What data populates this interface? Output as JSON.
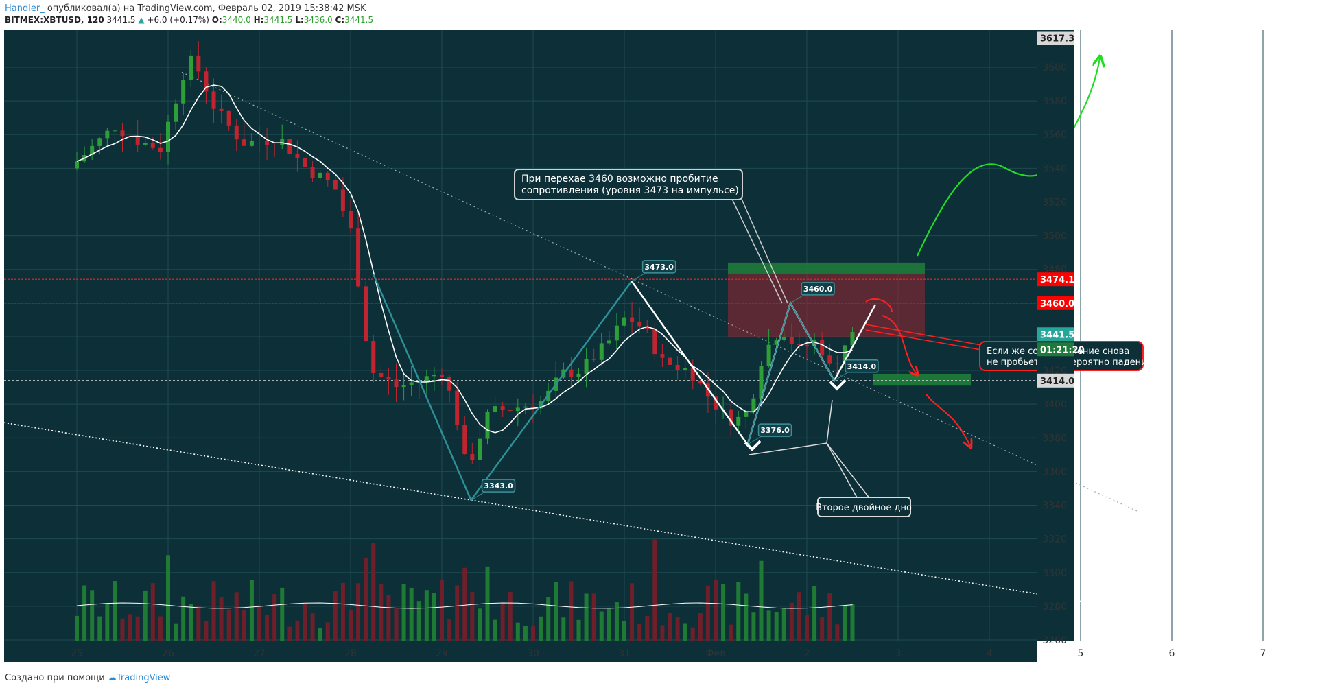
{
  "header": {
    "author": "Handler_",
    "published": "опубликовал(а) на TradingView.com, Февраль 02, 2019 15:38:42 MSK",
    "symbol": "BITMEX:XBTUSD, 120",
    "last": "3441.5",
    "arrow": "▲",
    "change": "+6.0 (+0.17%)",
    "o_label": "O:",
    "o": "3440.0",
    "h_label": "H:",
    "h": "3441.5",
    "l_label": "L:",
    "l": "3436.0",
    "c_label": "C:",
    "c": "3441.5"
  },
  "footer": {
    "made_with": "Создано при помощи",
    "brand": "TradingView"
  },
  "chart_data": {
    "type": "candlestick",
    "x_ticks": [
      "25",
      "26",
      "27",
      "28",
      "29",
      "30",
      "31",
      "Фев",
      "2",
      "3",
      "4",
      "5",
      "6",
      "7"
    ],
    "y_ticks": [
      3260,
      3280,
      3300,
      3320,
      3340,
      3360,
      3380,
      3400,
      3420,
      3440,
      3460,
      3480,
      3500,
      3520,
      3540,
      3560,
      3580,
      3600
    ],
    "ylim": [
      3255,
      3625
    ],
    "price_tags": [
      {
        "value": 3617.3,
        "label": "3617.3",
        "bg": "#d8d8d8",
        "fg": "#222222"
      },
      {
        "value": 3474.1,
        "label": "3474.1",
        "bg": "#ff0000",
        "fg": "#ffffff"
      },
      {
        "value": 3460.0,
        "label": "3460.0",
        "bg": "#ff0000",
        "fg": "#ffffff"
      },
      {
        "value": 3441.5,
        "label": "3441.5",
        "bg": "#26a69a",
        "fg": "#ffffff"
      },
      {
        "value": 3414.0,
        "label": "3414.0",
        "bg": "#d8d8d8",
        "fg": "#222222"
      }
    ],
    "countdown": "01:21:20",
    "point_labels": [
      {
        "day": 29.32,
        "value": 3343.0,
        "text": "3343.0"
      },
      {
        "day": 31.08,
        "value": 3473.0,
        "text": "3473.0"
      },
      {
        "day": 32.35,
        "value": 3376.0,
        "text": "3376.0"
      },
      {
        "day": 32.82,
        "value": 3460.0,
        "text": "3460.0"
      },
      {
        "day": 33.3,
        "value": 3414.0,
        "text": "3414.0"
      }
    ],
    "annotations": {
      "callout_top": [
        "При перехае 3460 возможно пробитие",
        "сопротивления (уровня 3473 на импульсе)"
      ],
      "callout_right": [
        "Если же сопротивление снова",
        "не пробьется то вероятно падение"
      ],
      "callout_bottom": "Второе двойное дно"
    },
    "colors": {
      "background": "#0d3038",
      "up": "#26a040",
      "down": "#c0242f",
      "ma": "#ffffff",
      "resistance": "#ff2020"
    }
  }
}
